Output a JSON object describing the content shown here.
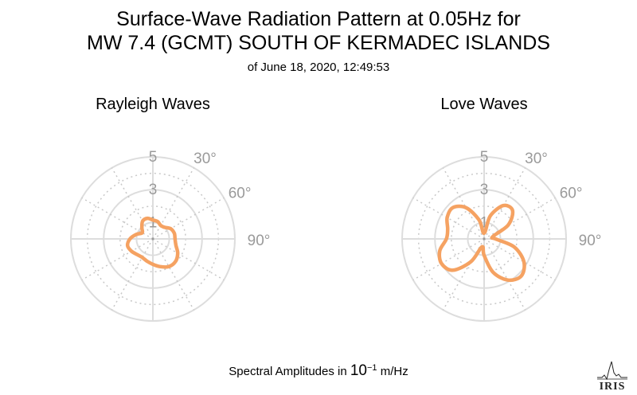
{
  "title": {
    "line1": "Surface-Wave Radiation Pattern at 0.05Hz for",
    "line2": "MW 7.4 (GCMT) SOUTH OF KERMADEC ISLANDS",
    "line3": "of June 18, 2020, 12:49:53"
  },
  "footer": {
    "prefix": "Spectral Amplitudes in ",
    "base": "10",
    "exponent": "−1",
    "unit": " m/Hz"
  },
  "logo_text": "IRIS",
  "colors": {
    "curve": "#f5a262",
    "grid_solid": "#dddddd",
    "grid_dotted": "#c8c8c8",
    "label": "#9a9a9a"
  },
  "chart_data": [
    {
      "type": "polar-line",
      "title": "Rayleigh Waves",
      "radial_ticks": [
        "1",
        "3",
        "5"
      ],
      "radial_max": 5,
      "angle_labels": [
        "30°",
        "60°",
        "90°"
      ],
      "angle_direction": "clockwise",
      "zero_at": "north",
      "series_theta_deg": [
        0,
        15,
        30,
        45,
        60,
        75,
        90,
        105,
        120,
        135,
        150,
        165,
        180,
        195,
        210,
        225,
        240,
        255,
        270,
        285,
        300,
        315,
        330,
        345,
        360
      ],
      "series_r": [
        1.15,
        1.1,
        0.95,
        1.0,
        1.25,
        1.35,
        1.35,
        1.45,
        1.75,
        1.95,
        1.95,
        1.75,
        1.55,
        1.4,
        1.3,
        1.35,
        1.5,
        1.6,
        1.4,
        1.05,
        0.75,
        0.95,
        1.25,
        1.3,
        1.15
      ]
    },
    {
      "type": "polar-line",
      "title": "Love Waves",
      "radial_ticks": [
        "1",
        "3",
        "5"
      ],
      "radial_max": 5,
      "angle_labels": [
        "30°",
        "60°",
        "90°"
      ],
      "angle_direction": "clockwise",
      "zero_at": "north",
      "series_theta_deg": [
        0,
        15,
        30,
        45,
        60,
        75,
        90,
        105,
        120,
        135,
        150,
        165,
        180,
        195,
        210,
        225,
        240,
        255,
        270,
        285,
        300,
        315,
        330,
        345,
        360
      ],
      "series_r": [
        0.35,
        1.45,
        2.35,
        2.45,
        1.7,
        0.55,
        0.7,
        1.9,
        2.8,
        3.2,
        2.9,
        2.1,
        1.0,
        0.5,
        1.6,
        2.7,
        3.0,
        2.8,
        2.3,
        2.3,
        2.6,
        2.7,
        2.2,
        1.2,
        0.35
      ]
    }
  ]
}
